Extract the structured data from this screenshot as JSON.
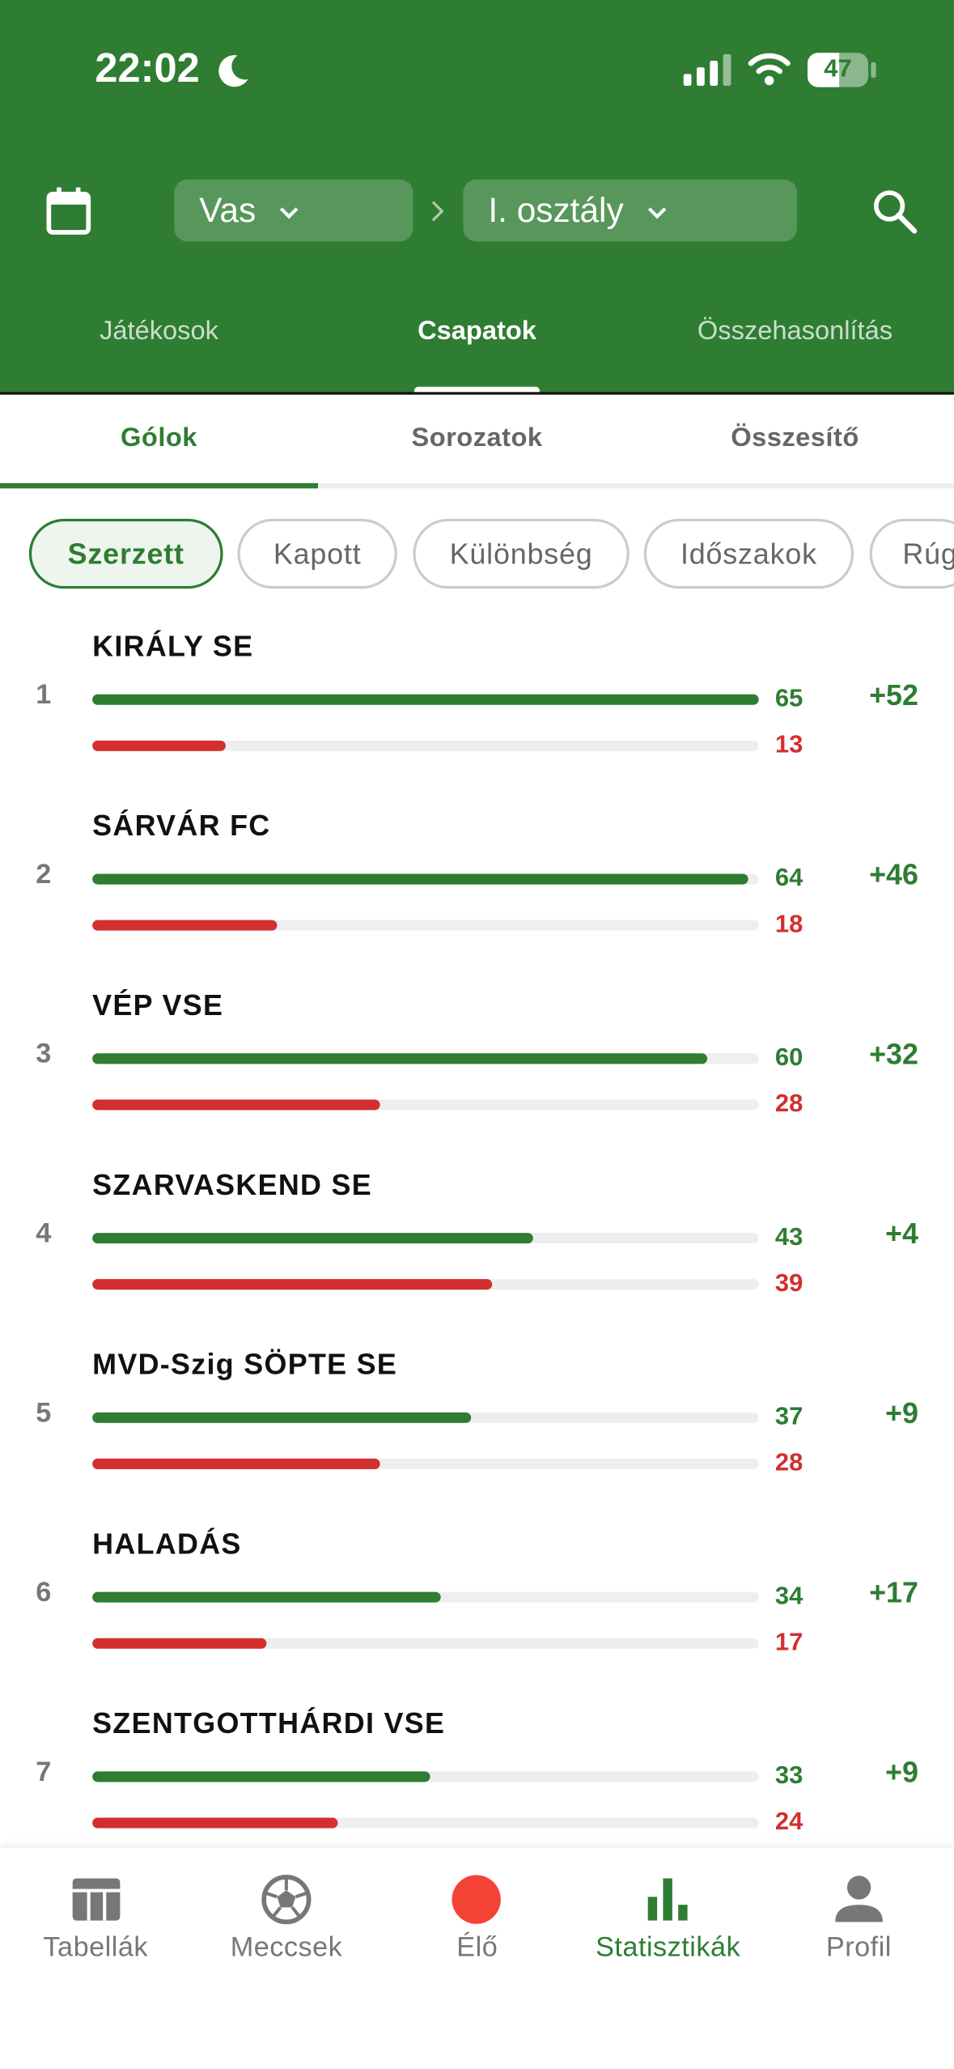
{
  "status": {
    "time": "22:02",
    "battery": "47"
  },
  "header": {
    "region": "Vas",
    "league": "I. osztály"
  },
  "tabs": [
    "Játékosok",
    "Csapatok",
    "Összehasonlítás"
  ],
  "subtabs": [
    "Gólok",
    "Sorozatok",
    "Összesítő"
  ],
  "chips": [
    "Szerzett",
    "Kapott",
    "Különbség",
    "Időszakok",
    "Rúg"
  ],
  "teams": [
    {
      "rank": 1,
      "name": "KIRÁLY SE",
      "scored": 65,
      "conceded": 13,
      "diff": "+52"
    },
    {
      "rank": 2,
      "name": "SÁRVÁR FC",
      "scored": 64,
      "conceded": 18,
      "diff": "+46"
    },
    {
      "rank": 3,
      "name": "VÉP VSE",
      "scored": 60,
      "conceded": 28,
      "diff": "+32"
    },
    {
      "rank": 4,
      "name": "SZARVASKEND SE",
      "scored": 43,
      "conceded": 39,
      "diff": "+4"
    },
    {
      "rank": 5,
      "name": "MVD-Szig SÖPTE SE",
      "scored": 37,
      "conceded": 28,
      "diff": "+9"
    },
    {
      "rank": 6,
      "name": "HALADÁS",
      "scored": 34,
      "conceded": 17,
      "diff": "+17"
    },
    {
      "rank": 7,
      "name": "SZENTGOTTHÁRDI VSE",
      "scored": 33,
      "conceded": 24,
      "diff": "+9"
    }
  ],
  "nav": [
    "Tabellák",
    "Meccsek",
    "Élő",
    "Statisztikák",
    "Profil"
  ]
}
